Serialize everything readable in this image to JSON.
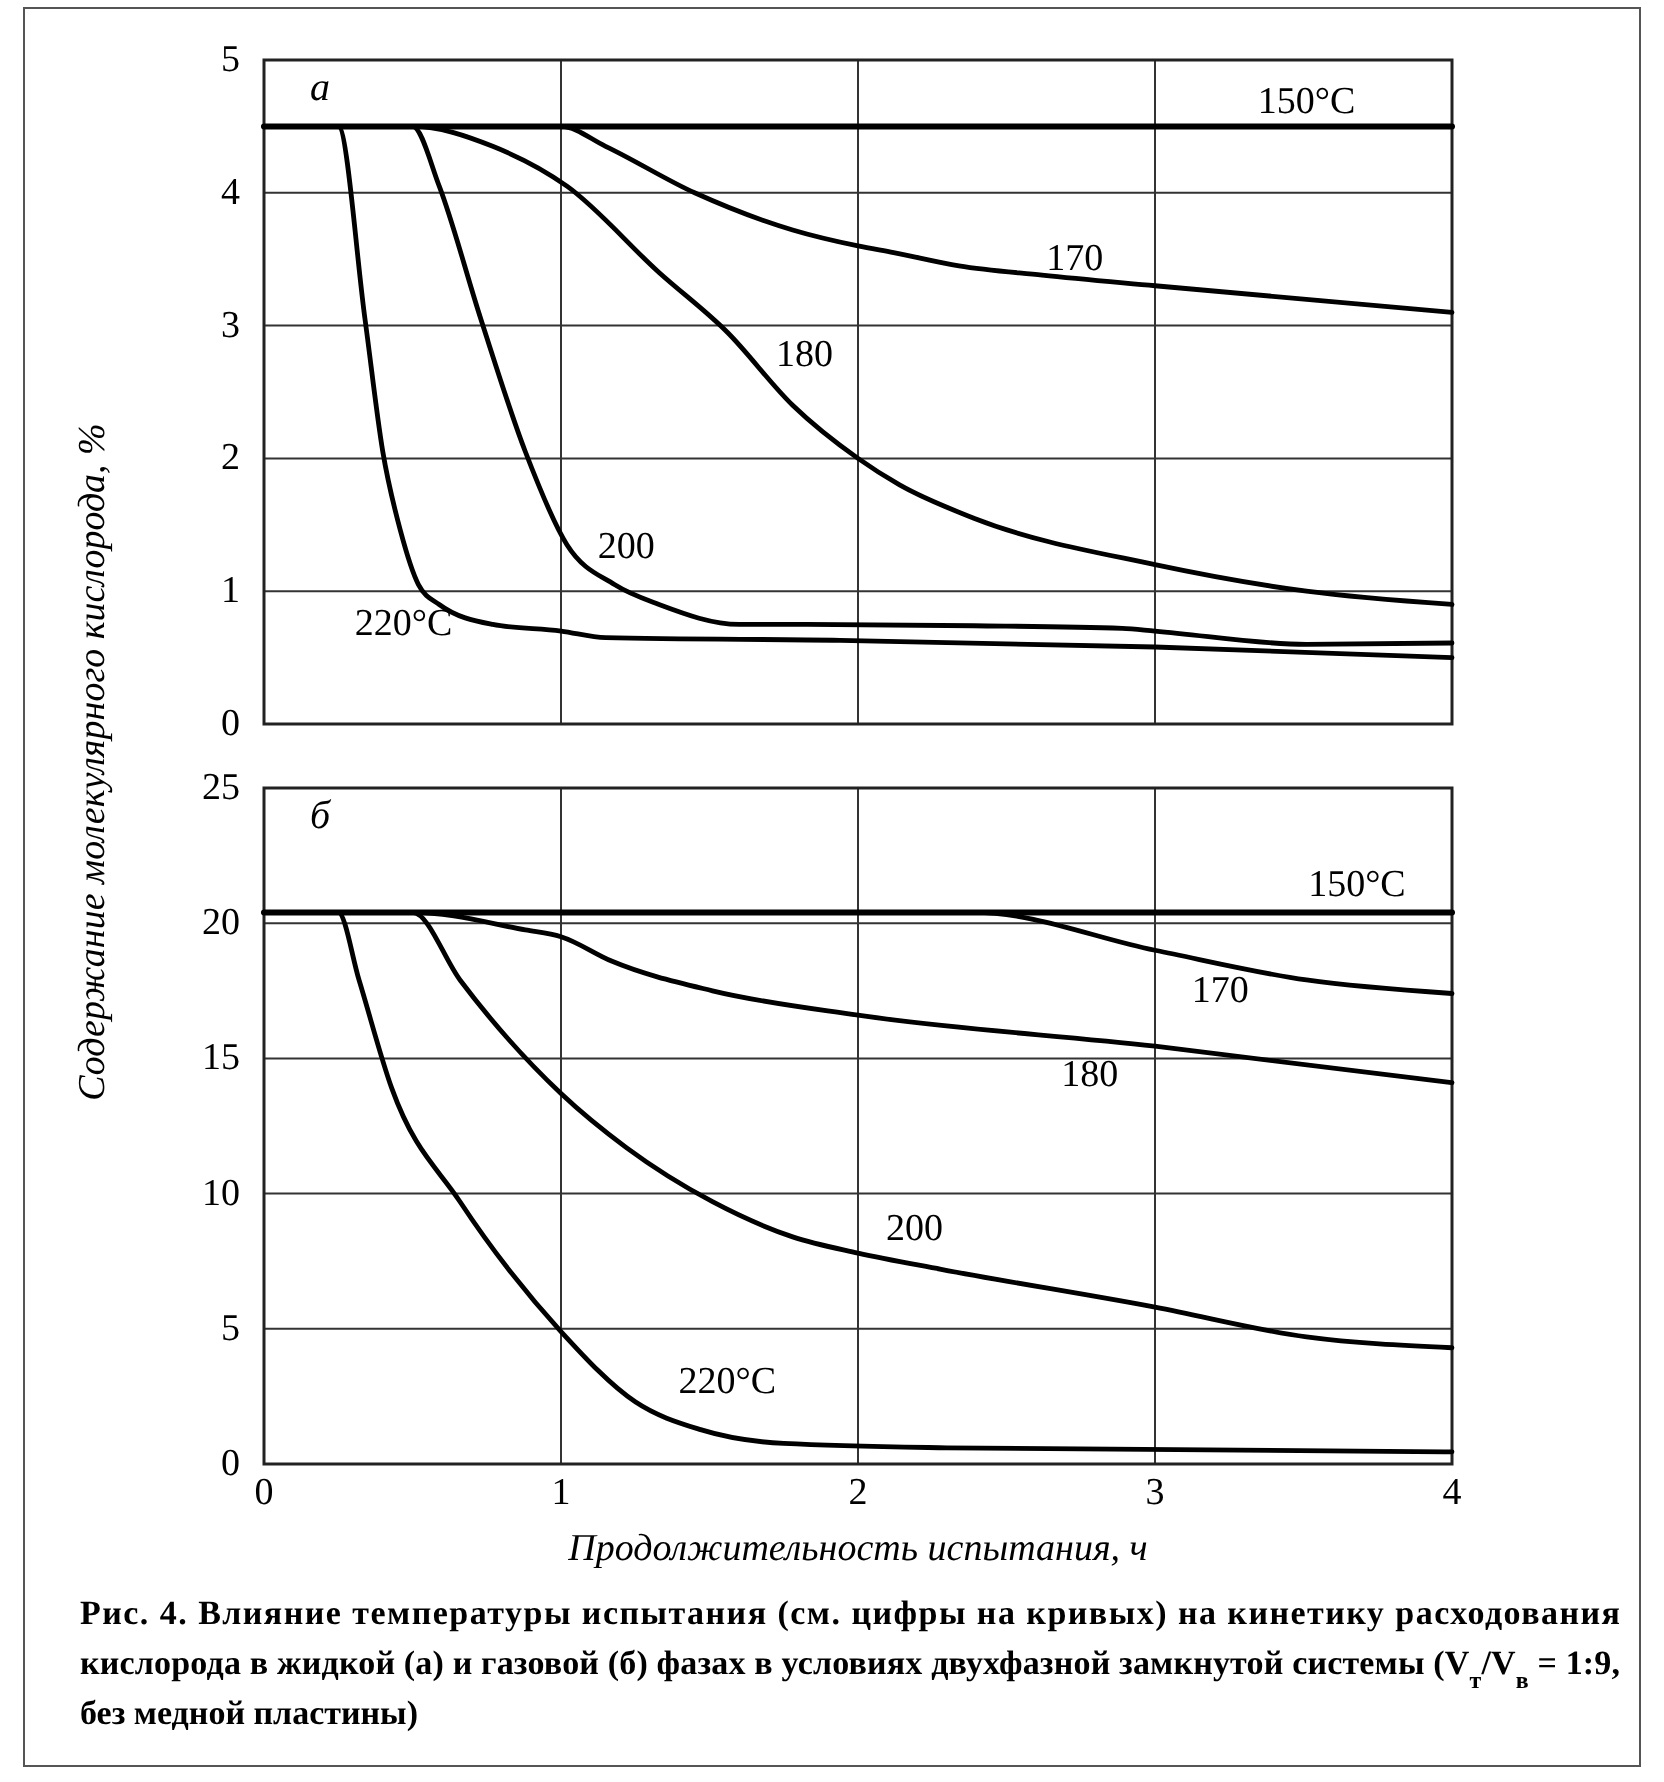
{
  "chart_data": [
    {
      "type": "line",
      "ylabel": "Содержание молекулярного кислорода, %",
      "annotations": [
        "а"
      ],
      "xlim": [
        0,
        4
      ],
      "xticks": [
        0,
        1,
        2,
        3,
        4
      ],
      "ylim": [
        0,
        5
      ],
      "yticks": [
        0,
        1,
        2,
        3,
        4,
        5
      ],
      "grid": true,
      "tick_labels": "y",
      "line_style": "solid",
      "marker": "none",
      "series": [
        {
          "name": "150°C",
          "color": "#000000",
          "x": [
            0,
            4
          ],
          "values": [
            4.5,
            4.5
          ]
        },
        {
          "name": "170",
          "color": "#000000",
          "x": [
            0,
            1.0,
            1.15,
            1.45,
            1.78,
            2.0,
            2.12,
            2.34,
            2.62,
            3.0,
            4.0
          ],
          "values": [
            4.5,
            4.5,
            4.35,
            4.0,
            3.72,
            3.6,
            3.55,
            3.45,
            3.38,
            3.3,
            3.1
          ]
        },
        {
          "name": "180",
          "color": "#000000",
          "x": [
            0,
            0.5,
            0.77,
            1.02,
            1.33,
            1.56,
            1.78,
            2.0,
            2.14,
            2.39,
            3.0,
            3.51,
            4.0
          ],
          "values": [
            4.5,
            4.5,
            4.35,
            4.05,
            3.4,
            2.95,
            2.4,
            2.0,
            1.8,
            1.55,
            1.2,
            1.0,
            0.9
          ]
        },
        {
          "name": "200",
          "color": "#000000",
          "x": [
            0,
            0.5,
            0.59,
            0.73,
            0.88,
            1.02,
            1.18,
            1.33,
            1.6,
            1.83,
            2.39,
            2.89,
            3.0,
            3.51,
            4.0
          ],
          "values": [
            4.5,
            4.5,
            4.05,
            3.05,
            2.05,
            1.35,
            1.05,
            0.9,
            0.75,
            0.75,
            0.74,
            0.72,
            0.7,
            0.6,
            0.61
          ]
        },
        {
          "name": "220°C",
          "color": "#000000",
          "x": [
            0,
            0.25,
            0.34,
            0.4,
            0.46,
            0.52,
            0.59,
            0.77,
            1.0,
            1.15,
            1.94,
            3.0,
            4.0
          ],
          "values": [
            4.5,
            4.5,
            3.05,
            2.05,
            1.45,
            1.05,
            0.9,
            0.75,
            0.7,
            0.65,
            0.63,
            0.58,
            0.5
          ]
        }
      ]
    },
    {
      "type": "line",
      "xlabel": "Продолжительность испытания, ч",
      "annotations": [
        "б",
        "Рис. 4. Влияние температуры испытания (см. цифры на кривых) на кинетику расходования кислорода в жидкой (а) и газовой (б) фазах в условиях двухфазной замкнутой системы (V$_{т}$/V$_{в}$ = 1:9, без медной пластины)"
      ],
      "xlim": [
        0,
        4
      ],
      "xticks": [
        0,
        1,
        2,
        3,
        4
      ],
      "ylim": [
        0,
        25
      ],
      "yticks": [
        0,
        5,
        10,
        15,
        20,
        25
      ],
      "grid": true,
      "line_style": "solid",
      "marker": "none",
      "series": [
        {
          "name": "150°C",
          "color": "#000000",
          "x": [
            0,
            4
          ],
          "values": [
            20.4,
            20.4
          ]
        },
        {
          "name": "170",
          "color": "#000000",
          "x": [
            0,
            2.39,
            3.0,
            3.51,
            4.0
          ],
          "values": [
            20.4,
            20.4,
            19.0,
            17.9,
            17.4
          ]
        },
        {
          "name": "180",
          "color": "#000000",
          "x": [
            0,
            0.5,
            0.88,
            1.0,
            1.17,
            1.51,
            2.0,
            3.0,
            4.0
          ],
          "values": [
            20.4,
            20.4,
            19.75,
            19.5,
            18.6,
            17.5,
            16.6,
            15.45,
            14.1
          ]
        },
        {
          "name": "200",
          "color": "#000000",
          "x": [
            0,
            0.5,
            0.66,
            1.0,
            1.22,
            1.51,
            1.78,
            2.0,
            2.28,
            3.0,
            3.51,
            4.0
          ],
          "values": [
            20.4,
            20.4,
            17.9,
            13.7,
            11.7,
            9.7,
            8.4,
            7.8,
            7.2,
            5.8,
            4.7,
            4.3
          ]
        },
        {
          "name": "220°C",
          "color": "#000000",
          "x": [
            0,
            0.25,
            0.32,
            0.43,
            0.66,
            1.0,
            1.25,
            1.47,
            1.75,
            2.3,
            4.0
          ],
          "values": [
            20.4,
            20.4,
            17.9,
            13.9,
            9.7,
            4.9,
            2.3,
            1.27,
            0.76,
            0.6,
            0.45
          ]
        }
      ]
    }
  ]
}
